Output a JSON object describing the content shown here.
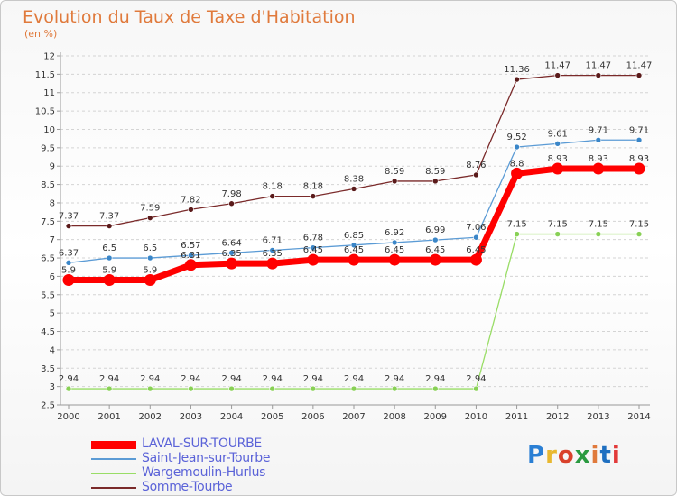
{
  "title": "Evolution du Taux de Taxe d'Habitation",
  "subtitle": "(en %)",
  "logo_text": "Proxiti",
  "chart_data": {
    "type": "line",
    "x": [
      2000,
      2001,
      2002,
      2003,
      2004,
      2005,
      2006,
      2007,
      2008,
      2009,
      2010,
      2011,
      2012,
      2013,
      2014
    ],
    "ylim": [
      2.5,
      12
    ],
    "yticks": [
      2.5,
      3,
      3.5,
      4,
      4.5,
      5,
      5.5,
      6,
      6.5,
      7,
      7.5,
      8,
      8.5,
      9,
      9.5,
      10,
      10.5,
      11,
      11.5,
      12
    ],
    "ytick_labels": [
      "2.5",
      "3",
      "3.5",
      "4",
      "4.5",
      "5",
      "5.5",
      "6",
      "6.5",
      "7",
      "7.5",
      "8",
      "8.5",
      "9",
      "9.5",
      "10",
      "10.5",
      "11",
      "11.5",
      "12"
    ],
    "grid": "dashed-horizontal",
    "legend_position": "bottom-left",
    "series": [
      {
        "name": "LAVAL-SUR-TOURBE",
        "color": "#ff0000",
        "style": "thick",
        "values": [
          5.9,
          5.9,
          5.9,
          6.31,
          6.35,
          6.35,
          6.45,
          6.45,
          6.45,
          6.45,
          6.45,
          8.8,
          8.93,
          8.93,
          8.93
        ],
        "labels": [
          "5.9",
          "5.9",
          "5.9",
          "6.31",
          "6.35",
          "6.35",
          "6.45",
          "6.45",
          "6.45",
          "6.45",
          "6.45",
          "8.8",
          "8.93",
          "8.93",
          "8.93"
        ]
      },
      {
        "name": "Saint-Jean-sur-Tourbe",
        "color": "#5b9bd5",
        "style": "normal",
        "values": [
          6.37,
          6.5,
          6.5,
          6.57,
          6.64,
          6.71,
          6.78,
          6.85,
          6.92,
          6.99,
          7.06,
          9.52,
          9.61,
          9.71,
          9.71
        ],
        "labels": [
          "6.37",
          "6.5",
          "6.5",
          "6.57",
          "6.64",
          "6.71",
          "6.78",
          "6.85",
          "6.92",
          "6.99",
          "7.06",
          "9.52",
          "9.61",
          "9.71",
          "9.71"
        ]
      },
      {
        "name": "Wargemoulin-Hurlus",
        "color": "#99dd66",
        "style": "normal",
        "values": [
          2.94,
          2.94,
          2.94,
          2.94,
          2.94,
          2.94,
          2.94,
          2.94,
          2.94,
          2.94,
          2.94,
          7.15,
          7.15,
          7.15,
          7.15
        ],
        "labels": [
          "2.94",
          "2.94",
          "2.94",
          "2.94",
          "2.94",
          "2.94",
          "2.94",
          "2.94",
          "2.94",
          "2.94",
          "2.94",
          "7.15",
          "7.15",
          "7.15",
          "7.15"
        ]
      },
      {
        "name": "Somme-Tourbe",
        "color": "#7a2a2a",
        "style": "normal",
        "values": [
          7.37,
          7.37,
          7.59,
          7.82,
          7.98,
          8.18,
          8.18,
          8.38,
          8.59,
          8.59,
          8.76,
          11.36,
          11.47,
          11.47,
          11.47
        ],
        "labels": [
          "7.37",
          "7.37",
          "7.59",
          "7.82",
          "7.98",
          "8.18",
          "8.18",
          "8.38",
          "8.59",
          "8.59",
          "8.76",
          "11.36",
          "11.47",
          "11.47",
          "11.47"
        ]
      }
    ]
  }
}
